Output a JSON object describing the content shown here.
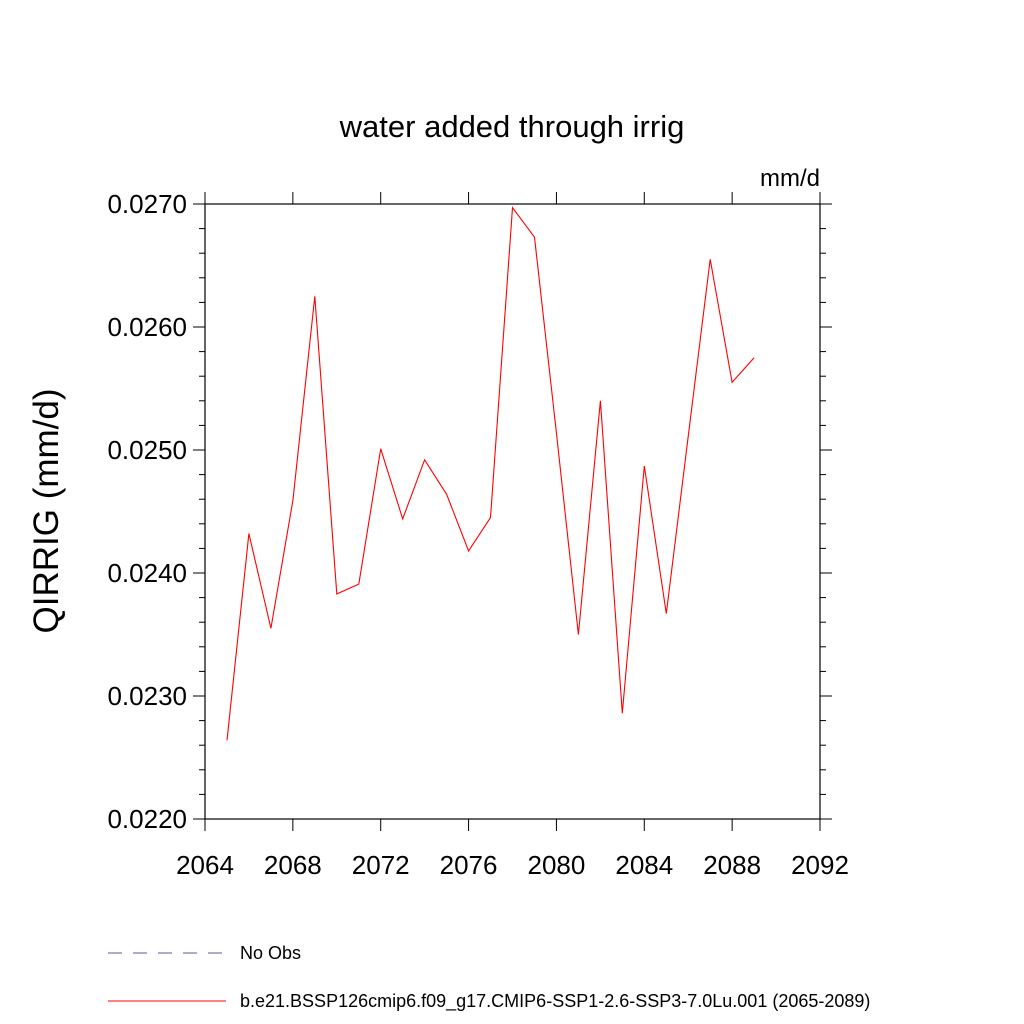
{
  "chart_data": {
    "type": "line",
    "title": "water added through irrig",
    "units": "mm/d",
    "ylabel": "QIRRIG  (mm/d)",
    "xlabel": "",
    "xlim": [
      2064,
      2092
    ],
    "ylim": [
      0.022,
      0.027
    ],
    "xticks": [
      "2064",
      "2068",
      "2072",
      "2076",
      "2080",
      "2084",
      "2088",
      "2092"
    ],
    "yticks": [
      "0.0220",
      "0.0230",
      "0.0240",
      "0.0250",
      "0.0260",
      "0.0270"
    ],
    "grid": false,
    "series": [
      {
        "name": "b.e21.BSSP126cmip6.f09_g17.CMIP6-SSP1-2.6-SSP3-7.0Lu.001 (2065-2089)",
        "color": "#ff0000",
        "x": [
          2065,
          2066,
          2067,
          2068,
          2069,
          2070,
          2071,
          2072,
          2073,
          2074,
          2075,
          2076,
          2077,
          2078,
          2079,
          2080,
          2081,
          2082,
          2083,
          2084,
          2085,
          2086,
          2087,
          2088,
          2089
        ],
        "y": [
          0.02264,
          0.02432,
          0.02355,
          0.02459,
          0.02625,
          0.02383,
          0.02391,
          0.02501,
          0.02444,
          0.02492,
          0.02464,
          0.02418,
          0.02445,
          0.02697,
          0.02673,
          0.02514,
          0.0235,
          0.0254,
          0.02286,
          0.02487,
          0.02367,
          0.02511,
          0.02655,
          0.02555,
          0.02575
        ]
      }
    ],
    "legend": {
      "position": "bottom",
      "entries": [
        {
          "label": "No Obs",
          "color": "#5a5aa0",
          "style": "dashed"
        },
        {
          "label": "b.e21.BSSP126cmip6.f09_g17.CMIP6-SSP1-2.6-SSP3-7.0Lu.001 (2065-2089)",
          "color": "#ff0000",
          "style": "solid"
        }
      ]
    }
  }
}
